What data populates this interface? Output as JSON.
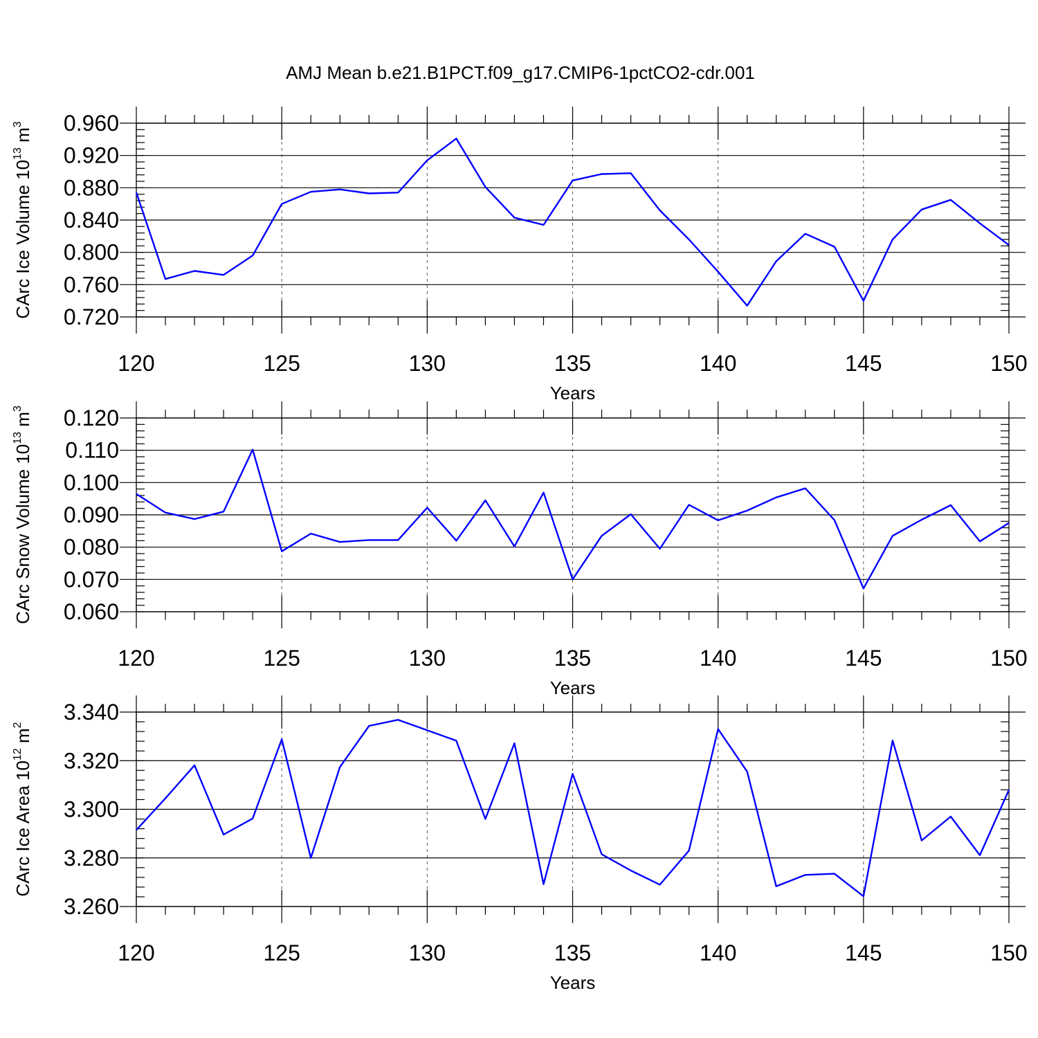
{
  "title": "AMJ Mean b.e21.B1PCT.f09_g17.CMIP6-1pctCO2-cdr.001",
  "colors": {
    "series": "#0000ff"
  },
  "chart_data": [
    {
      "type": "line",
      "xlabel": "Years",
      "ylabel": {
        "base": "CArc Ice Volume 10",
        "sup1": "13",
        "mid": " m",
        "sup2": "3"
      },
      "xlim": [
        120,
        150
      ],
      "ylim": [
        0.72,
        0.96
      ],
      "x_ticks": [
        "120",
        "125",
        "130",
        "135",
        "140",
        "145",
        "150"
      ],
      "y_ticks": [
        "0.720",
        "0.760",
        "0.800",
        "0.840",
        "0.880",
        "0.920",
        "0.960"
      ],
      "y_tick_values": [
        0.72,
        0.76,
        0.8,
        0.84,
        0.88,
        0.92,
        0.96
      ],
      "y_minor_step": 0.008,
      "grid": "vertical dashed at major x ticks",
      "x": [
        120,
        121,
        122,
        123,
        124,
        125,
        126,
        127,
        128,
        129,
        130,
        131,
        132,
        133,
        134,
        135,
        136,
        137,
        138,
        139,
        140,
        141,
        142,
        143,
        144,
        145,
        146,
        147,
        148,
        149,
        150
      ],
      "values": [
        0.874,
        0.767,
        0.777,
        0.772,
        0.796,
        0.86,
        0.875,
        0.878,
        0.873,
        0.874,
        0.914,
        0.941,
        0.881,
        0.843,
        0.834,
        0.889,
        0.897,
        0.898,
        0.852,
        0.816,
        0.776,
        0.734,
        0.789,
        0.823,
        0.807,
        0.74,
        0.816,
        0.853,
        0.865,
        0.836,
        0.809
      ]
    },
    {
      "type": "line",
      "xlabel": "Years",
      "ylabel": {
        "base": "CArc Snow Volume 10",
        "sup1": "13",
        "mid": " m",
        "sup2": "3"
      },
      "xlim": [
        120,
        150
      ],
      "ylim": [
        0.06,
        0.12
      ],
      "x_ticks": [
        "120",
        "125",
        "130",
        "135",
        "140",
        "145",
        "150"
      ],
      "y_ticks": [
        "0.060",
        "0.070",
        "0.080",
        "0.090",
        "0.100",
        "0.110",
        "0.120"
      ],
      "y_tick_values": [
        0.06,
        0.07,
        0.08,
        0.09,
        0.1,
        0.11,
        0.12
      ],
      "y_minor_step": 0.002,
      "grid": "vertical dashed at major x ticks",
      "x": [
        120,
        121,
        122,
        123,
        124,
        125,
        126,
        127,
        128,
        129,
        130,
        131,
        132,
        133,
        134,
        135,
        136,
        137,
        138,
        139,
        140,
        141,
        142,
        143,
        144,
        145,
        146,
        147,
        148,
        149,
        150
      ],
      "values": [
        0.0965,
        0.0907,
        0.0887,
        0.091,
        0.1102,
        0.0787,
        0.0842,
        0.0816,
        0.0822,
        0.0822,
        0.0922,
        0.082,
        0.0945,
        0.0802,
        0.0969,
        0.07,
        0.0835,
        0.0902,
        0.0795,
        0.0931,
        0.0883,
        0.0913,
        0.0954,
        0.0982,
        0.0884,
        0.0672,
        0.0835,
        0.0885,
        0.093,
        0.0818,
        0.0875
      ]
    },
    {
      "type": "line",
      "xlabel": "Years",
      "ylabel": {
        "base": "CArc Ice Area 10",
        "sup1": "12",
        "mid": " m",
        "sup2": "2"
      },
      "xlim": [
        120,
        150
      ],
      "ylim": [
        3.26,
        3.34
      ],
      "x_ticks": [
        "120",
        "125",
        "130",
        "135",
        "140",
        "145",
        "150"
      ],
      "y_ticks": [
        "3.260",
        "3.280",
        "3.300",
        "3.320",
        "3.340"
      ],
      "y_tick_values": [
        3.26,
        3.28,
        3.3,
        3.32,
        3.34
      ],
      "y_minor_step": 0.004,
      "grid": "vertical dashed at major x ticks",
      "x": [
        120,
        121,
        122,
        123,
        124,
        125,
        126,
        127,
        128,
        129,
        130,
        131,
        132,
        133,
        134,
        135,
        136,
        137,
        138,
        139,
        140,
        141,
        142,
        143,
        144,
        145,
        146,
        147,
        148,
        149,
        150
      ],
      "values": [
        3.2915,
        3.3045,
        3.3181,
        3.2896,
        3.2962,
        3.3288,
        3.28,
        3.3174,
        3.3343,
        3.3368,
        3.3325,
        3.3282,
        3.296,
        3.3272,
        3.2692,
        3.3146,
        3.2815,
        3.2748,
        3.269,
        3.283,
        3.333,
        3.3155,
        3.2683,
        3.273,
        3.2735,
        3.2642,
        3.3283,
        3.2872,
        3.297,
        3.2811,
        3.308
      ]
    }
  ]
}
